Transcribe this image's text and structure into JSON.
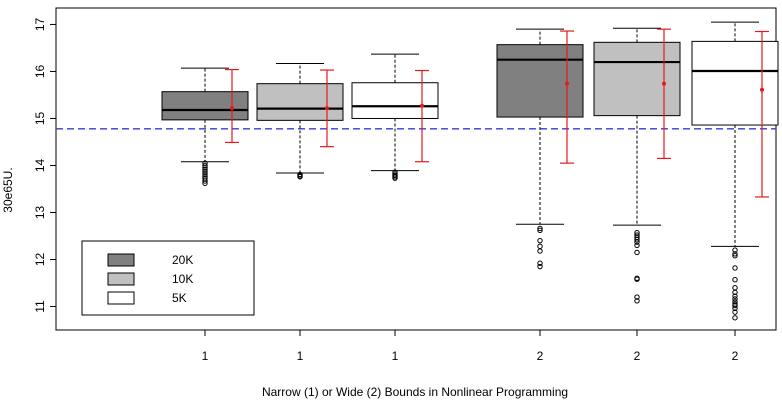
{
  "chart_data": {
    "type": "boxplot",
    "xlabel": "Narrow (1) or Wide (2)  Bounds in Nonlinear Programming",
    "ylabel": "30e65U.",
    "ylim": [
      10.5,
      17.35
    ],
    "yticks": [
      11,
      12,
      13,
      14,
      15,
      16,
      17
    ],
    "reference_line": {
      "y": 14.78,
      "style": "dashed",
      "color": "#3a3ad8"
    },
    "colors": {
      "20K": "#808080",
      "10K": "#c0c0c0",
      "5K": "#ffffff",
      "mean_marker": "#e41a1c",
      "box_edge": "#000000"
    },
    "legend": {
      "position": "bottom-left",
      "entries": [
        {
          "label": "20K",
          "color": "#808080"
        },
        {
          "label": "10K",
          "color": "#c0c0c0"
        },
        {
          "label": "5K",
          "color": "#ffffff"
        }
      ]
    },
    "boxes": [
      {
        "label": "1",
        "sample": "20K",
        "whisker_low": 14.08,
        "q1": 14.97,
        "median": 15.18,
        "q3": 15.57,
        "whisker_high": 16.07,
        "outliers": [
          14.05,
          14.0,
          13.96,
          13.92,
          13.88,
          13.84,
          13.8,
          13.76,
          13.72,
          13.67,
          13.62
        ],
        "mean": 15.22,
        "mean_low": 14.49,
        "mean_high": 16.04
      },
      {
        "label": "1",
        "sample": "10K",
        "whisker_low": 13.84,
        "q1": 14.96,
        "median": 15.21,
        "q3": 15.74,
        "whisker_high": 16.17,
        "outliers": [
          13.81,
          13.78,
          13.76
        ],
        "mean": 15.22,
        "mean_low": 14.4,
        "mean_high": 16.03
      },
      {
        "label": "1",
        "sample": "5K",
        "whisker_low": 13.89,
        "q1": 15.0,
        "median": 15.26,
        "q3": 15.76,
        "whisker_high": 16.37,
        "outliers": [
          13.86,
          13.82,
          13.79,
          13.76,
          13.73
        ],
        "mean": 15.27,
        "mean_low": 14.08,
        "mean_high": 16.02
      },
      {
        "label": "2",
        "sample": "20K",
        "whisker_low": 12.75,
        "q1": 15.03,
        "median": 16.25,
        "q3": 16.57,
        "whisker_high": 16.9,
        "outliers": [
          12.66,
          12.62,
          12.4,
          12.28,
          12.18,
          11.92,
          11.85
        ],
        "mean": 15.74,
        "mean_low": 14.05,
        "mean_high": 16.86
      },
      {
        "label": "2",
        "sample": "10K",
        "whisker_low": 12.73,
        "q1": 15.06,
        "median": 16.2,
        "q3": 16.62,
        "whisker_high": 16.92,
        "outliers": [
          12.57,
          12.52,
          12.47,
          12.42,
          12.37,
          12.3,
          12.15,
          11.6,
          11.58,
          11.2,
          11.12
        ],
        "mean": 15.74,
        "mean_low": 14.15,
        "mean_high": 16.9
      },
      {
        "label": "2",
        "sample": "5K",
        "whisker_low": 12.28,
        "q1": 14.86,
        "median": 16.01,
        "q3": 16.64,
        "whisker_high": 17.05,
        "outliers": [
          12.2,
          12.12,
          12.08,
          11.82,
          11.57,
          11.4,
          11.3,
          11.22,
          11.16,
          11.1,
          11.05,
          11.02,
          10.96,
          10.88,
          10.76
        ],
        "mean": 15.61,
        "mean_low": 13.33,
        "mean_high": 16.85
      }
    ]
  }
}
